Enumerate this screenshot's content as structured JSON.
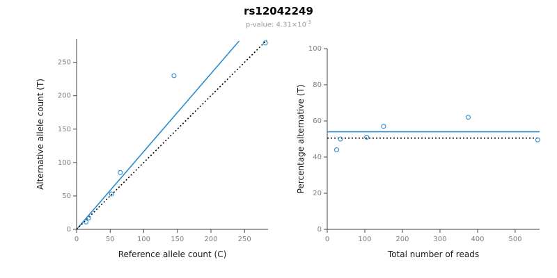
{
  "header": {
    "title": "rs12042249",
    "subtitle_prefix": "p-value: 4.31×10",
    "subtitle_exponent": "-3"
  },
  "colors": {
    "line_blue": "#2b8cce",
    "point_blue": "#2b8cce",
    "dashed_black": "#000000",
    "axis": "#444444",
    "tick_label": "#7f7f7f",
    "axis_title": "#1a1a1a"
  },
  "chart_data": [
    {
      "type": "scatter",
      "name": "allele-counts-scatter",
      "xlabel": "Reference allele count (C)",
      "ylabel": "Alternative allele count (T)",
      "xlim": [
        0,
        285
      ],
      "ylim": [
        0,
        285
      ],
      "xticks": [
        0,
        50,
        100,
        150,
        200,
        250
      ],
      "yticks": [
        0,
        50,
        100,
        150,
        200,
        250
      ],
      "grid": false,
      "points": [
        [
          14,
          11
        ],
        [
          18,
          17
        ],
        [
          52,
          53
        ],
        [
          65,
          85
        ],
        [
          145,
          230
        ],
        [
          281,
          279
        ]
      ],
      "lines": [
        {
          "label": "regression-line",
          "style": "solid",
          "color": "blue",
          "x1": 0,
          "y1": 0,
          "x2": 242,
          "y2": 282
        },
        {
          "label": "identity-line",
          "style": "dotted",
          "color": "black",
          "x1": 0,
          "y1": 0,
          "x2": 283,
          "y2": 283
        }
      ]
    },
    {
      "type": "scatter",
      "name": "percentage-vs-reads-scatter",
      "xlabel": "Total number of reads",
      "ylabel": "Percentage alternative (T)",
      "xlim": [
        0,
        565
      ],
      "ylim": [
        0,
        100
      ],
      "xticks": [
        0,
        100,
        200,
        300,
        400,
        500
      ],
      "yticks": [
        0,
        20,
        40,
        60,
        80,
        100
      ],
      "grid": false,
      "points": [
        [
          25,
          44
        ],
        [
          35,
          50
        ],
        [
          105,
          51
        ],
        [
          150,
          57
        ],
        [
          375,
          62
        ],
        [
          560,
          49.5
        ]
      ],
      "lines": [
        {
          "label": "fitted-percentage-line",
          "style": "solid",
          "color": "blue",
          "x1": 0,
          "y1": 54,
          "x2": 565,
          "y2": 54
        },
        {
          "label": "expected-percentage-line",
          "style": "dotted",
          "color": "black",
          "x1": 0,
          "y1": 50.5,
          "x2": 565,
          "y2": 50.5
        }
      ]
    }
  ]
}
